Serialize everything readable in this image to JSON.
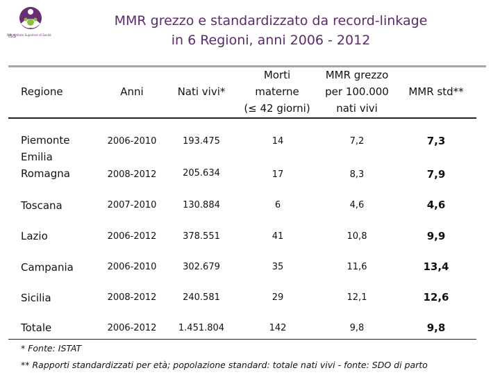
{
  "title": {
    "line1": "MMR grezzo e standardizzato da record-linkage",
    "line2": "in 6 Regioni,  anni 2006 - 2012"
  },
  "logo": {
    "icon": "iss-logo-icon",
    "caption": "ISS - Istituto Superiore di Sanità"
  },
  "columns": {
    "regione": "Regione",
    "anni": "Anni",
    "nati": "Nati vivi*",
    "morti": [
      "Morti",
      "materne",
      "(≤ 42 giorni)"
    ],
    "mmr_grezzo": [
      "MMR grezzo",
      "per 100.000",
      "nati vivi"
    ],
    "mmr_std": "MMR std**"
  },
  "rows": [
    {
      "region": "Piemonte",
      "anni": "2006-2010",
      "nati": "193.475",
      "morti": "14",
      "grezzo": "7,2",
      "std": "7,3"
    },
    {
      "region": "Emilia Romagna",
      "anni": "2008-2012",
      "nati": "205.634",
      "morti": "17",
      "grezzo": "8,3",
      "std": "7,9"
    },
    {
      "region": "Toscana",
      "anni": "2007-2010",
      "nati": "130.884",
      "morti": "6",
      "grezzo": "4,6",
      "std": "4,6"
    },
    {
      "region": "Lazio",
      "anni": "2006-2012",
      "nati": "378.551",
      "morti": "41",
      "grezzo": "10,8",
      "std": "9,9"
    },
    {
      "region": "Campania",
      "anni": "2006-2010",
      "nati": "302.679",
      "morti": "35",
      "grezzo": "11,6",
      "std": "13,4"
    },
    {
      "region": "Sicilia",
      "anni": "2008-2012",
      "nati": "240.581",
      "morti": "29",
      "grezzo": "12,1",
      "std": "12,6"
    },
    {
      "region": "Totale",
      "anni": "2006-2012",
      "nati": "1.451.804",
      "morti": "142",
      "grezzo": "9,8",
      "std": "9,8"
    }
  ],
  "footnotes": {
    "note1": "* Fonte: ISTAT",
    "note2": "** Rapporti standardizzati per età; popolazione standard: totale nati vivi - fonte: SDO di parto"
  },
  "colors": {
    "title": "#5c2a6b",
    "logo_purple": "#6b2d74",
    "logo_green": "#8dbf3f",
    "rule_gray": "#a6a6a6"
  }
}
